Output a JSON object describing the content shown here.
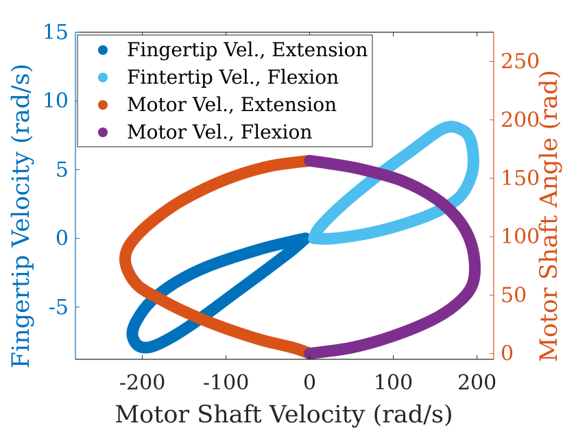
{
  "chart_data": {
    "type": "scatter",
    "xlabel": "Motor Shaft Velocity (rad/s)",
    "ylabel_left": "Fingertip Velocity (rad/s)",
    "ylabel_right": "Motor Shaft Angle (rad)",
    "xlim": [
      -280,
      220
    ],
    "ylim_left": [
      -8.8,
      15
    ],
    "ylim_right": [
      -5,
      275
    ],
    "x_ticks": [
      -200,
      -100,
      0,
      100,
      200
    ],
    "x_tick_labels": [
      "-200",
      "-100",
      "0",
      "100",
      "200"
    ],
    "y_left_ticks": [
      -5,
      0,
      5,
      10,
      15
    ],
    "y_left_tick_labels": [
      "-5",
      "0",
      "5",
      "10",
      "15"
    ],
    "y_right_ticks": [
      0,
      50,
      100,
      150,
      200,
      250
    ],
    "y_right_tick_labels": [
      "0",
      "50",
      "100",
      "150",
      "200",
      "250"
    ],
    "grid": false,
    "legend_position": "top-left",
    "colors": {
      "left_axis": "#0072BD",
      "right_axis": "#D95319",
      "fingertip_extension": "#0072BD",
      "fingertip_flexion": "#4DBEEE",
      "motor_extension": "#D95319",
      "motor_flexion": "#7E2F8E"
    },
    "series": [
      {
        "name": "Fingertip Vel., Extension",
        "axis": "left",
        "color": "#0072BD",
        "width": 9,
        "points": [
          [
            -5,
            0
          ],
          [
            -20,
            -0.2
          ],
          [
            -60,
            -0.8
          ],
          [
            -120,
            -2.0
          ],
          [
            -160,
            -3.2
          ],
          [
            -190,
            -4.6
          ],
          [
            -207,
            -6.0
          ],
          [
            -212,
            -7.0
          ],
          [
            -205,
            -7.8
          ],
          [
            -190,
            -7.9
          ],
          [
            -165,
            -7.2
          ],
          [
            -130,
            -5.8
          ],
          [
            -90,
            -4.0
          ],
          [
            -50,
            -2.2
          ],
          [
            -20,
            -0.8
          ],
          [
            -5,
            0
          ]
        ]
      },
      {
        "name": "Fintertip Vel., Flexion",
        "axis": "left",
        "color": "#4DBEEE",
        "width": 9,
        "points": [
          [
            5,
            0
          ],
          [
            30,
            0
          ],
          [
            80,
            0.5
          ],
          [
            130,
            1.4
          ],
          [
            160,
            2.2
          ],
          [
            182,
            3.2
          ],
          [
            195,
            5.0
          ],
          [
            193,
            7.0
          ],
          [
            182,
            7.9
          ],
          [
            160,
            8.0
          ],
          [
            120,
            6.3
          ],
          [
            80,
            4.5
          ],
          [
            40,
            2.5
          ],
          [
            12,
            0.8
          ],
          [
            5,
            0
          ]
        ]
      },
      {
        "name": "Motor Vel., Extension",
        "axis": "right",
        "color": "#D95319",
        "width": 9,
        "points": [
          [
            0,
            165
          ],
          [
            -50,
            160
          ],
          [
            -100,
            149
          ],
          [
            -150,
            132
          ],
          [
            -185,
            115
          ],
          [
            -210,
            98
          ],
          [
            -220,
            85
          ],
          [
            -218,
            72
          ],
          [
            -205,
            58
          ],
          [
            -180,
            47
          ],
          [
            -150,
            36
          ],
          [
            -110,
            24
          ],
          [
            -60,
            12
          ],
          [
            -20,
            5
          ],
          [
            0,
            0
          ]
        ]
      },
      {
        "name": "Motor Vel., Flexion",
        "axis": "right",
        "color": "#7E2F8E",
        "width": 9,
        "points": [
          [
            0,
            0
          ],
          [
            50,
            5
          ],
          [
            100,
            15
          ],
          [
            150,
            30
          ],
          [
            180,
            45
          ],
          [
            195,
            60
          ],
          [
            197,
            80
          ],
          [
            190,
            100
          ],
          [
            175,
            117
          ],
          [
            150,
            133
          ],
          [
            110,
            148
          ],
          [
            60,
            158
          ],
          [
            20,
            163
          ],
          [
            0,
            165
          ]
        ]
      }
    ]
  }
}
